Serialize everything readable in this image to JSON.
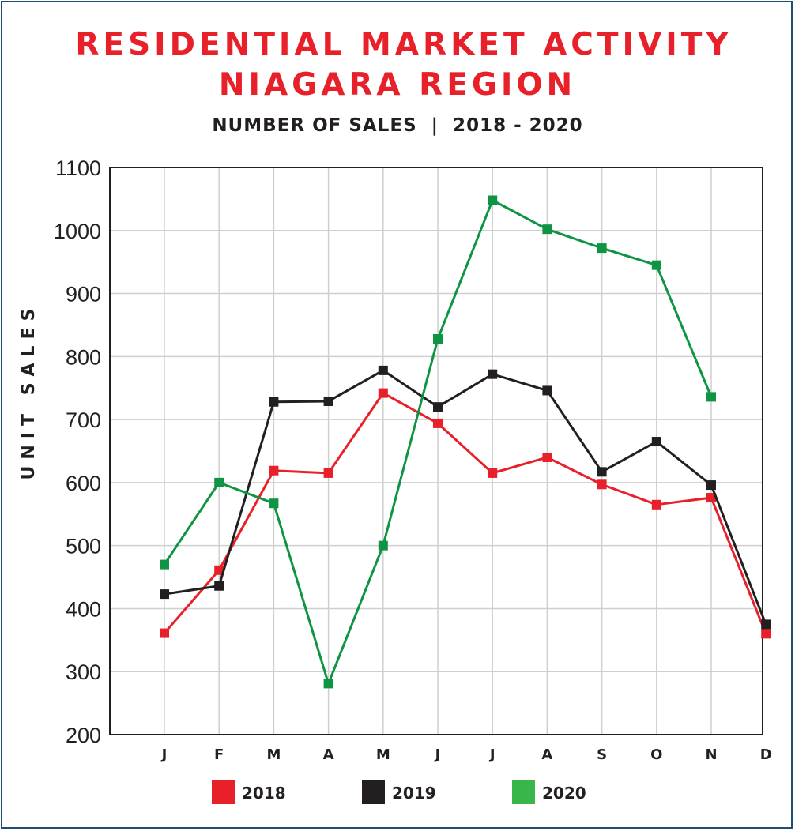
{
  "title_line1": "RESIDENTIAL MARKET ACTIVITY",
  "title_line2": "NIAGARA REGION",
  "subtitle": "NUMBER OF SALES  |  2018 - 2020",
  "chart_data": {
    "type": "line",
    "title": "RESIDENTIAL MARKET ACTIVITY NIAGARA REGION",
    "subtitle": "NUMBER OF SALES | 2018 - 2020",
    "ylabel": "UNIT SALES",
    "xlabel": "",
    "categories": [
      "J",
      "F",
      "M",
      "A",
      "M",
      "J",
      "J",
      "A",
      "S",
      "O",
      "N",
      "D"
    ],
    "ylim": [
      200,
      1100
    ],
    "yticks": [
      200,
      300,
      400,
      500,
      600,
      700,
      800,
      900,
      1000,
      1100
    ],
    "grid": true,
    "legend_position": "bottom",
    "series": [
      {
        "name": "2018",
        "color": "#e8202a",
        "values": [
          361,
          461,
          619,
          615,
          742,
          694,
          615,
          640,
          597,
          565,
          576,
          360
        ]
      },
      {
        "name": "2019",
        "color": "#231f20",
        "values": [
          423,
          436,
          728,
          729,
          778,
          720,
          772,
          746,
          617,
          665,
          596,
          375
        ]
      },
      {
        "name": "2020",
        "color": "#0f9443",
        "legend_color": "#39b54a",
        "values": [
          470,
          600,
          567,
          281,
          500,
          828,
          1048,
          1002,
          972,
          945,
          736,
          null
        ]
      }
    ]
  }
}
